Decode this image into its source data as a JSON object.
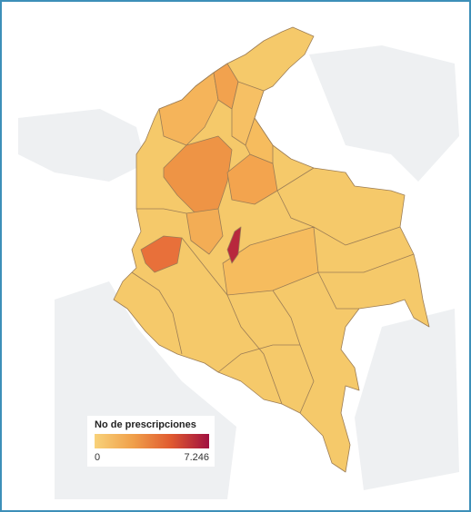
{
  "legend": {
    "title": "No de prescripciones",
    "min": 0,
    "max": {
      "value": 7246,
      "label": "7.246"
    },
    "colors": [
      "#f8d27a",
      "#f0a04a",
      "#e05a30",
      "#a01040"
    ]
  }
}
